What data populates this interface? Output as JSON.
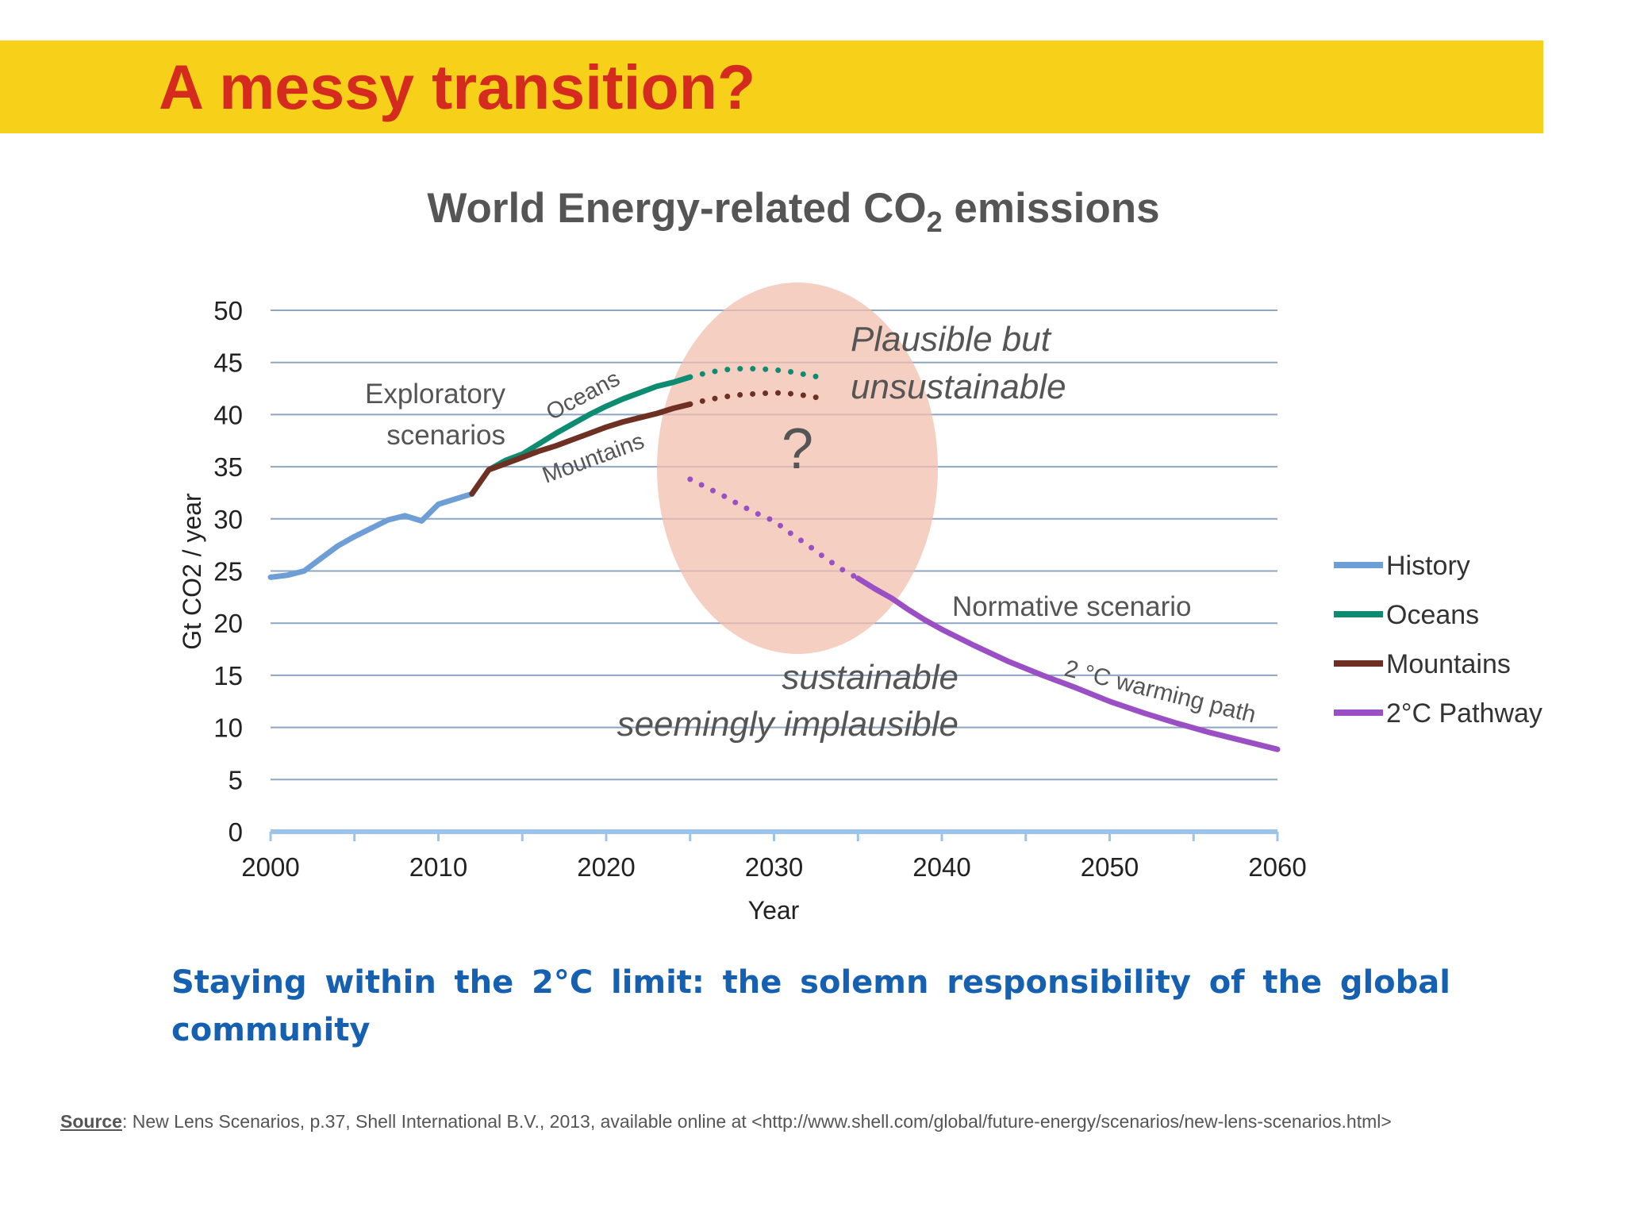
{
  "slide": {
    "title": "A messy transition?",
    "tagline": "Staying within the 2°C limit: the solemn responsibility of the global community",
    "source_label": "Source",
    "source_text": ": New Lens Scenarios, p.37, Shell International  B.V., 2013, available online at <http://www.shell.com/global/future-energy/scenarios/new-lens-scenarios.html>"
  },
  "chart_title": {
    "main": "World Energy-related CO",
    "sub": "2",
    "tail": " emissions"
  },
  "colors": {
    "banner": "#f6d019",
    "title": "#d52b1e",
    "history": "#6d9fd6",
    "oceans": "#0e8c72",
    "mountains": "#6e3022",
    "pathway": "#9a50c4",
    "ellipse": "#f2bfae",
    "tagline": "#1560b0"
  },
  "chart_data": {
    "type": "line",
    "title": "World Energy-related CO2 emissions",
    "xlabel": "Year",
    "ylabel": "Gt CO2 / year",
    "xlim": [
      2000,
      2060
    ],
    "ylim": [
      0,
      50
    ],
    "x_ticks": [
      "2000",
      "2010",
      "2020",
      "2030",
      "2040",
      "2050",
      "2060"
    ],
    "y_ticks": [
      "0",
      "5",
      "10",
      "15",
      "20",
      "25",
      "30",
      "35",
      "40",
      "45",
      "50"
    ],
    "grid": true,
    "legend_position": "right",
    "series": [
      {
        "name": "History",
        "color": "#6d9fd6",
        "points": [
          [
            2000,
            24.4
          ],
          [
            2001,
            24.6
          ],
          [
            2002,
            25.0
          ],
          [
            2003,
            26.2
          ],
          [
            2004,
            27.4
          ],
          [
            2005,
            28.3
          ],
          [
            2006,
            29.1
          ],
          [
            2007,
            29.9
          ],
          [
            2008,
            30.3
          ],
          [
            2009,
            29.8
          ],
          [
            2010,
            31.4
          ],
          [
            2011,
            31.9
          ],
          [
            2012,
            32.4
          ]
        ]
      },
      {
        "name": "Oceans",
        "color": "#0e8c72",
        "points": [
          [
            2013,
            34.7
          ],
          [
            2014,
            35.6
          ],
          [
            2015,
            36.2
          ],
          [
            2016,
            37.2
          ],
          [
            2017,
            38.2
          ],
          [
            2018,
            39.1
          ],
          [
            2019,
            40.0
          ],
          [
            2020,
            40.8
          ],
          [
            2021,
            41.5
          ],
          [
            2022,
            42.1
          ],
          [
            2023,
            42.7
          ],
          [
            2024,
            43.1
          ],
          [
            2025,
            43.6
          ]
        ],
        "projection": [
          [
            2025,
            43.6
          ],
          [
            2026,
            44.0
          ],
          [
            2027,
            44.3
          ],
          [
            2028,
            44.4
          ],
          [
            2029,
            44.4
          ],
          [
            2030,
            44.3
          ],
          [
            2031,
            44.1
          ],
          [
            2032,
            43.8
          ],
          [
            2033,
            43.5
          ]
        ]
      },
      {
        "name": "Mountains",
        "color": "#6e3022",
        "points": [
          [
            2012,
            32.4
          ],
          [
            2013,
            34.7
          ],
          [
            2014,
            35.3
          ],
          [
            2015,
            35.9
          ],
          [
            2016,
            36.5
          ],
          [
            2017,
            37.0
          ],
          [
            2018,
            37.6
          ],
          [
            2019,
            38.2
          ],
          [
            2020,
            38.8
          ],
          [
            2021,
            39.3
          ],
          [
            2022,
            39.7
          ],
          [
            2023,
            40.1
          ],
          [
            2024,
            40.6
          ],
          [
            2025,
            41.0
          ]
        ],
        "projection": [
          [
            2025,
            41.0
          ],
          [
            2026,
            41.4
          ],
          [
            2027,
            41.7
          ],
          [
            2028,
            41.9
          ],
          [
            2029,
            42.0
          ],
          [
            2030,
            42.1
          ],
          [
            2031,
            42.0
          ],
          [
            2032,
            41.8
          ],
          [
            2033,
            41.5
          ]
        ]
      },
      {
        "name": "2°C Pathway",
        "color": "#9a50c4",
        "projection": [
          [
            2025,
            33.8
          ],
          [
            2026,
            33.0
          ],
          [
            2027,
            32.2
          ],
          [
            2028,
            31.3
          ],
          [
            2029,
            30.5
          ],
          [
            2030,
            29.8
          ],
          [
            2031,
            28.6
          ],
          [
            2032,
            27.5
          ],
          [
            2033,
            26.3
          ],
          [
            2034,
            25.2
          ],
          [
            2035,
            24.3
          ]
        ],
        "points": [
          [
            2035,
            24.3
          ],
          [
            2036,
            23.3
          ],
          [
            2037,
            22.4
          ],
          [
            2038,
            21.3
          ],
          [
            2039,
            20.3
          ],
          [
            2040,
            19.4
          ],
          [
            2042,
            17.8
          ],
          [
            2044,
            16.3
          ],
          [
            2046,
            15.0
          ],
          [
            2048,
            13.8
          ],
          [
            2050,
            12.5
          ],
          [
            2052,
            11.4
          ],
          [
            2054,
            10.4
          ],
          [
            2056,
            9.5
          ],
          [
            2058,
            8.7
          ],
          [
            2060,
            7.9
          ]
        ]
      }
    ],
    "annotations": {
      "exploratory_1": "Exploratory",
      "exploratory_2": "scenarios",
      "oceans_label": "Oceans",
      "mountains_label": "Mountains",
      "question": "?",
      "plausible_1": "Plausible but",
      "plausible_2": "unsustainable",
      "normative": "Normative scenario",
      "warming_path": "2 °C warming path",
      "sustainable_1": "sustainable",
      "sustainable_2": "seemingly implausible"
    }
  }
}
